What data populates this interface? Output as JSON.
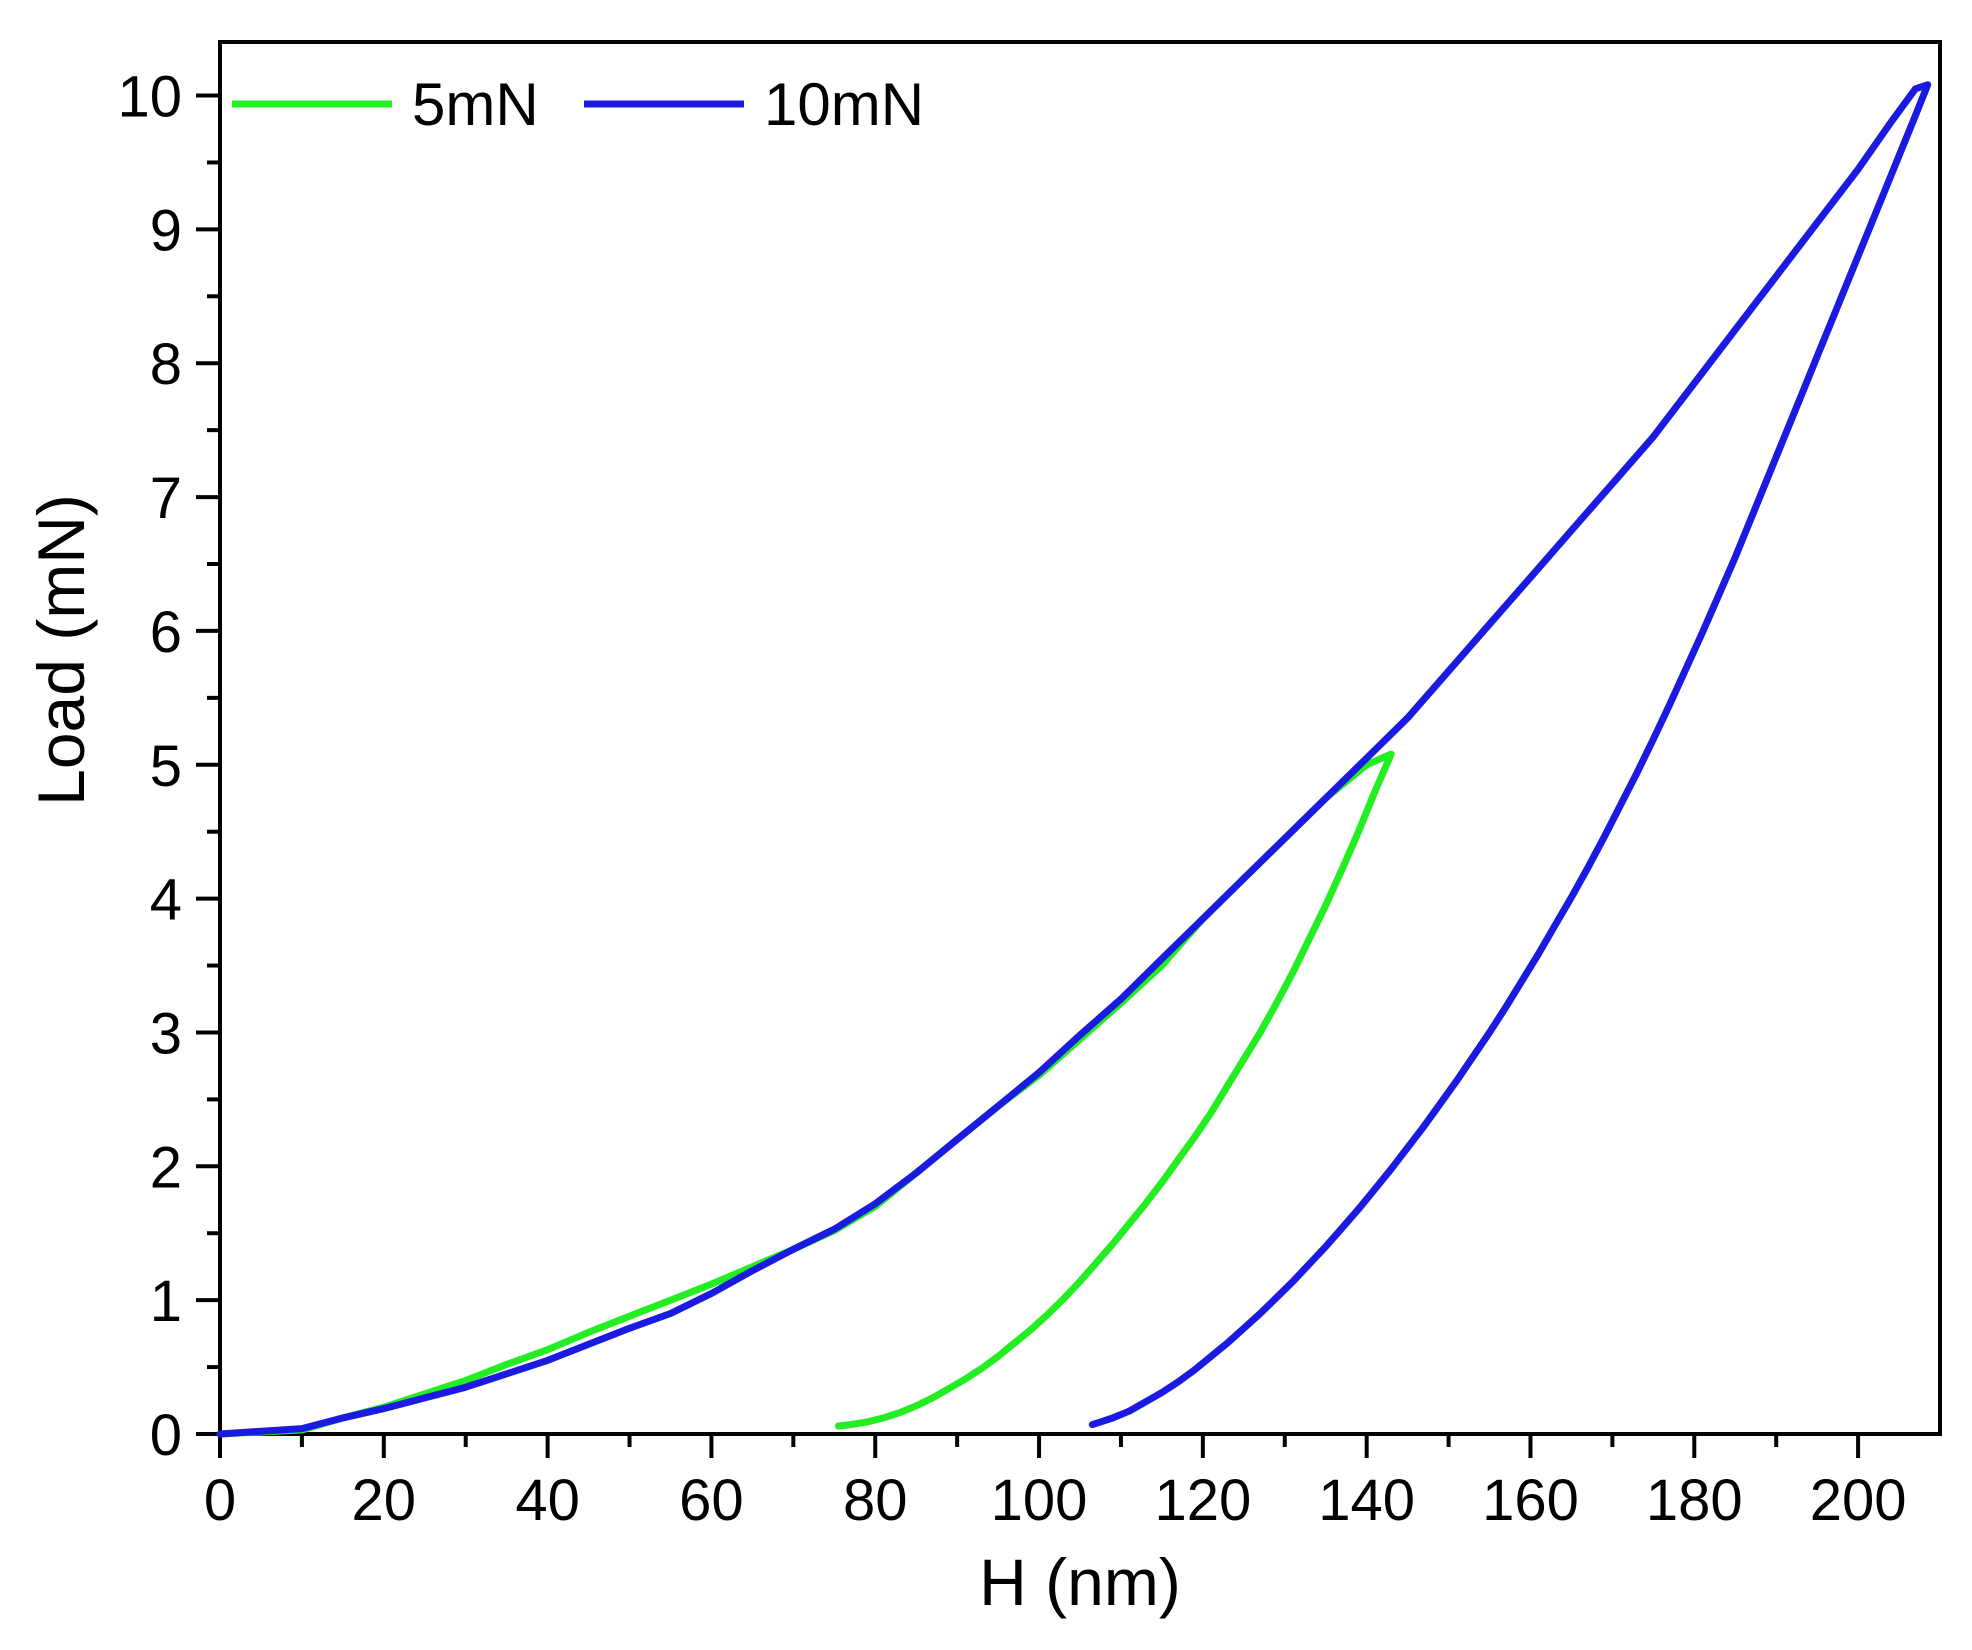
{
  "chart_data": {
    "type": "line",
    "title": "",
    "xlabel": "H (nm)",
    "ylabel": "Load (mN)",
    "xlim": [
      0,
      210
    ],
    "ylim": [
      0,
      10.4
    ],
    "xticks": [
      0,
      20,
      40,
      60,
      80,
      100,
      120,
      140,
      160,
      180,
      200
    ],
    "yticks": [
      0,
      1,
      2,
      3,
      4,
      5,
      6,
      7,
      8,
      9,
      10
    ],
    "grid": false,
    "legend_position": "top-left",
    "series": [
      {
        "name": "5mN",
        "color": "#22ee22",
        "x": [
          0,
          10,
          15,
          20,
          25,
          30,
          35,
          40,
          45,
          50,
          55,
          60,
          65,
          70,
          75,
          80,
          85,
          90,
          95,
          100,
          105,
          110,
          115,
          120,
          125,
          130,
          135,
          140,
          143,
          141,
          139,
          137,
          135,
          133,
          131,
          129,
          127,
          125,
          123,
          121,
          119,
          117,
          115,
          113,
          111,
          109,
          107,
          105,
          103,
          101,
          99,
          97,
          95,
          93,
          91,
          89,
          87,
          85,
          83,
          81,
          79,
          77,
          75.5
        ],
        "y": [
          0,
          0.03,
          0.12,
          0.2,
          0.3,
          0.4,
          0.52,
          0.63,
          0.76,
          0.88,
          1.0,
          1.12,
          1.25,
          1.38,
          1.52,
          1.7,
          1.95,
          2.2,
          2.45,
          2.68,
          2.95,
          3.22,
          3.5,
          3.85,
          4.15,
          4.45,
          4.75,
          5.0,
          5.08,
          4.8,
          4.5,
          4.22,
          3.95,
          3.7,
          3.45,
          3.22,
          3.0,
          2.8,
          2.6,
          2.4,
          2.22,
          2.05,
          1.88,
          1.72,
          1.57,
          1.42,
          1.28,
          1.14,
          1.01,
          0.89,
          0.78,
          0.68,
          0.58,
          0.49,
          0.41,
          0.34,
          0.27,
          0.21,
          0.16,
          0.12,
          0.09,
          0.07,
          0.06
        ]
      },
      {
        "name": "10mN",
        "color": "#1a1ae0",
        "x": [
          0,
          10,
          15,
          20,
          25,
          30,
          35,
          40,
          45,
          50,
          55,
          60,
          65,
          70,
          75,
          80,
          85,
          90,
          95,
          100,
          105,
          110,
          115,
          120,
          125,
          130,
          135,
          140,
          145,
          150,
          155,
          160,
          165,
          170,
          175,
          180,
          185,
          190,
          195,
          200,
          204,
          207,
          208.5,
          207,
          205,
          203,
          201,
          199,
          197,
          195,
          193,
          191,
          189,
          187,
          185,
          183,
          181,
          179,
          177,
          175,
          173,
          171,
          169,
          167,
          165,
          163,
          161,
          159,
          157,
          155,
          153,
          151,
          149,
          147,
          145,
          143,
          141,
          139,
          137,
          135,
          133,
          131,
          129,
          127,
          125,
          123,
          121,
          119,
          117,
          115,
          113,
          111,
          109,
          107,
          106.5
        ],
        "y": [
          0,
          0.04,
          0.12,
          0.19,
          0.27,
          0.35,
          0.45,
          0.55,
          0.67,
          0.79,
          0.9,
          1.05,
          1.22,
          1.38,
          1.53,
          1.72,
          1.95,
          2.2,
          2.45,
          2.7,
          2.98,
          3.25,
          3.55,
          3.85,
          4.15,
          4.45,
          4.75,
          5.05,
          5.35,
          5.7,
          6.05,
          6.4,
          6.75,
          7.1,
          7.45,
          7.85,
          8.25,
          8.65,
          9.05,
          9.45,
          9.8,
          10.05,
          10.08,
          9.85,
          9.55,
          9.25,
          8.95,
          8.65,
          8.35,
          8.05,
          7.75,
          7.45,
          7.15,
          6.85,
          6.55,
          6.27,
          5.99,
          5.72,
          5.45,
          5.19,
          4.94,
          4.7,
          4.46,
          4.23,
          4.01,
          3.8,
          3.59,
          3.39,
          3.19,
          3.0,
          2.82,
          2.64,
          2.47,
          2.3,
          2.14,
          1.98,
          1.83,
          1.68,
          1.54,
          1.4,
          1.27,
          1.14,
          1.02,
          0.9,
          0.79,
          0.68,
          0.58,
          0.48,
          0.39,
          0.31,
          0.24,
          0.17,
          0.12,
          0.08,
          0.07
        ]
      }
    ]
  }
}
